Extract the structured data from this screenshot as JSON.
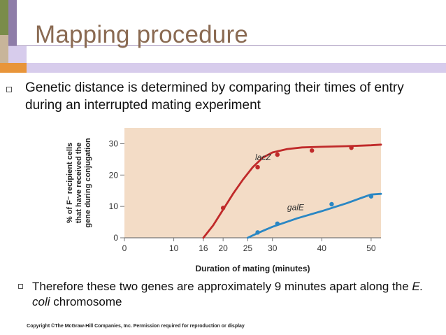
{
  "slide": {
    "title": "Mapping procedure",
    "bullet1": "Genetic distance is determined by comparing their times of entry during an interrupted mating experiment",
    "bullet2_part1": "Therefore these two genes are approximately 9 minutes apart along the ",
    "bullet2_italic": "E. coli",
    "bullet2_part2": " chromosome",
    "copyright": "Copyright ©The McGraw-Hill Companies, Inc. Permission required for reproduction or display",
    "colors": {
      "title": "#8a6a52",
      "deco_green": "#7a8c4a",
      "deco_purple": "#8e7da8",
      "deco_tan": "#c8b59a",
      "deco_orange": "#e8953a",
      "deco_lavender": "#d7ccec",
      "plot_bg": "#f3dcc6",
      "series_lacZ": "#c02a2a",
      "series_galE": "#2a87c4"
    }
  },
  "chart_data": {
    "type": "line",
    "xlabel": "Duration of mating (minutes)",
    "ylabel_lines": [
      "% of F⁻ recipient cells",
      "that have received the",
      "gene during conjugation"
    ],
    "xlim": [
      0,
      52
    ],
    "ylim": [
      0,
      35
    ],
    "xticks": [
      0,
      10,
      16,
      20,
      25,
      30,
      40,
      50
    ],
    "yticks": [
      0,
      10,
      20,
      30
    ],
    "grid": false,
    "series": [
      {
        "name": "lacZ",
        "color": "#c02a2a",
        "curve": [
          [
            16,
            0
          ],
          [
            18,
            4
          ],
          [
            20,
            9
          ],
          [
            22,
            14
          ],
          [
            24,
            18.5
          ],
          [
            26,
            22.5
          ],
          [
            28,
            25.5
          ],
          [
            30,
            27.2
          ],
          [
            33,
            28.3
          ],
          [
            36,
            28.8
          ],
          [
            40,
            29
          ],
          [
            45,
            29.2
          ],
          [
            50,
            29.5
          ],
          [
            52,
            29.7
          ]
        ],
        "points": [
          [
            20,
            9.5
          ],
          [
            27,
            22.5
          ],
          [
            31,
            26.5
          ],
          [
            38,
            27.8
          ],
          [
            46,
            28.7
          ]
        ]
      },
      {
        "name": "galE",
        "color": "#2a87c4",
        "curve": [
          [
            25,
            0
          ],
          [
            27,
            1.5
          ],
          [
            30,
            3.5
          ],
          [
            35,
            6.2
          ],
          [
            40,
            8.5
          ],
          [
            45,
            11
          ],
          [
            48,
            12.7
          ],
          [
            50,
            13.8
          ],
          [
            52,
            14
          ]
        ],
        "points": [
          [
            27,
            1.7
          ],
          [
            31,
            4.5
          ],
          [
            42,
            10.7
          ],
          [
            50,
            13.2
          ]
        ]
      }
    ]
  }
}
